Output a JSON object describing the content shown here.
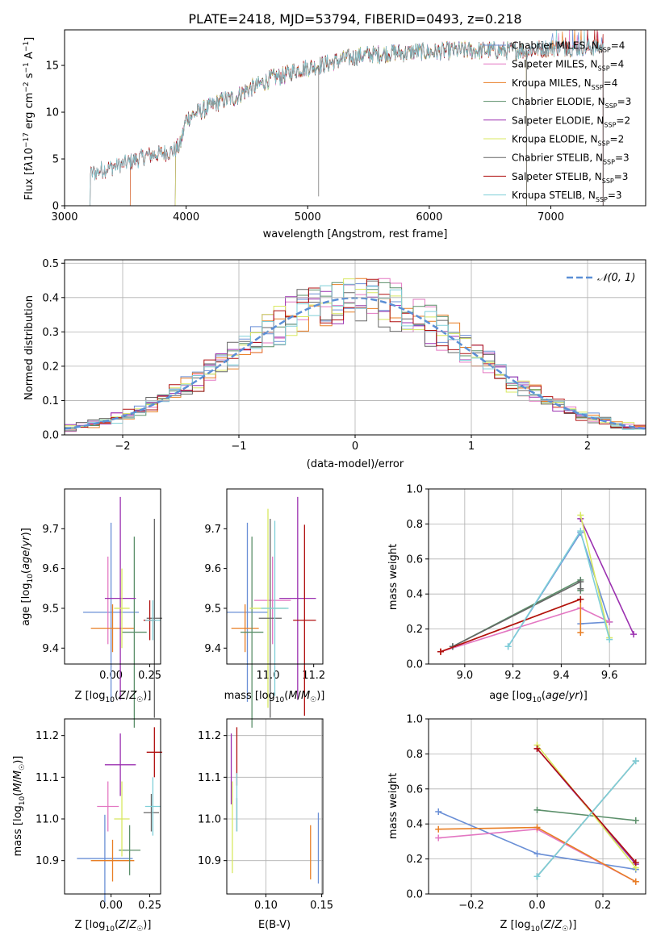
{
  "chart_data": [
    {
      "id": "spectrum",
      "type": "line",
      "title": "PLATE=2418, MJD=53794, FIBERID=0493, z=0.218",
      "xlabel": "wavelength [Angstrom, rest frame]",
      "ylabel": "Flux [f_λ 10^-17 erg cm^-2 s^-1 A^-1]",
      "xlim": [
        3000,
        7780
      ],
      "ylim": [
        0,
        18.8
      ],
      "xticks": [
        3000,
        4000,
        5000,
        6000,
        7000
      ],
      "yticks": [
        0,
        5,
        10,
        15
      ],
      "grid": false,
      "legend_position": "right",
      "spectrum_shape": {
        "x": [
          3210,
          3300,
          3400,
          3500,
          3600,
          3700,
          3800,
          3900,
          3950,
          4000,
          4100,
          4200,
          4300,
          4400,
          4500,
          4600,
          4700,
          4800,
          4900,
          5000,
          5100,
          5200,
          5300,
          5400,
          5500,
          5600,
          5700,
          5800,
          5900,
          6000,
          6200,
          6400,
          6600,
          6800,
          7000,
          7200,
          7400
        ],
        "y": [
          3.4,
          3.8,
          4.2,
          4.5,
          5.0,
          5.4,
          5.6,
          5.9,
          6.4,
          9.3,
          10.0,
          10.6,
          11.3,
          11.5,
          12.4,
          12.9,
          13.6,
          13.9,
          14.5,
          14.8,
          15.0,
          15.3,
          15.7,
          15.9,
          16.2,
          16.2,
          16.4,
          16.3,
          16.5,
          16.4,
          16.6,
          16.6,
          16.6,
          16.6,
          16.9,
          16.9,
          16.9
        ]
      },
      "series": [
        {
          "name": "Chabrier MILES, N_SSP=4",
          "color": "#6a8fd6",
          "start": 3540,
          "end": 7430
        },
        {
          "name": "Salpeter MILES, N_SSP=4",
          "color": "#e377c2",
          "start": 3540,
          "end": 7430
        },
        {
          "name": "Kroupa MILES, N_SSP=4",
          "color": "#e87e24",
          "start": 3540,
          "end": 7430
        },
        {
          "name": "Chabrier ELODIE, N_SSP=3",
          "color": "#5b8f6a",
          "start": 3910,
          "end": 6800
        },
        {
          "name": "Salpeter ELODIE, N_SSP=2",
          "color": "#9b30b0",
          "start": 3910,
          "end": 6800
        },
        {
          "name": "Kroupa ELODIE, N_SSP=2",
          "color": "#d8e860",
          "start": 3910,
          "end": 6800
        },
        {
          "name": "Chabrier STELIB, N_SSP=3",
          "color": "#666666",
          "start": 3210,
          "end": 7430
        },
        {
          "name": "Salpeter STELIB, N_SSP=3",
          "color": "#b01010",
          "start": 3210,
          "end": 7430
        },
        {
          "name": "Kroupa STELIB, N_SSP=3",
          "color": "#7fcfd8",
          "start": 3210,
          "end": 7430
        }
      ]
    },
    {
      "id": "residuals",
      "type": "line",
      "xlabel": "(data-model)/error",
      "ylabel": "Normed distribution",
      "xlim": [
        -2.5,
        2.5
      ],
      "ylim": [
        0,
        0.51
      ],
      "xticks": [
        -2,
        -1,
        0,
        1,
        2
      ],
      "yticks": [
        0.0,
        0.1,
        0.2,
        0.3,
        0.4,
        0.5
      ],
      "grid": true,
      "legend_position": "top-right",
      "normal_label": "𝒩(0, 1)",
      "normal_color": "#5b8fd6",
      "bin_width": 0.1,
      "series_colors": [
        "#6a8fd6",
        "#e377c2",
        "#e87e24",
        "#5b8f6a",
        "#9b30b0",
        "#d8e860",
        "#666666",
        "#b01010",
        "#7fcfd8"
      ]
    },
    {
      "id": "age-vs-z",
      "type": "scatter",
      "xlabel": "Z [log10(Z/Z☉)]",
      "ylabel": "age [log10(age/yr)]",
      "xlim": [
        -0.3,
        0.32
      ],
      "ylim": [
        9.36,
        9.8
      ],
      "xticks": [
        0.0,
        0.25
      ],
      "yticks": [
        9.4,
        9.5,
        9.6,
        9.7
      ],
      "grid": false,
      "points": [
        {
          "color": "#6a8fd6",
          "x": 0.0,
          "xerr": 0.18,
          "y": 9.49,
          "yerr": 0.225
        },
        {
          "color": "#e377c2",
          "x": -0.02,
          "xerr": 0.0,
          "y": 9.52,
          "yerr": 0.11
        },
        {
          "color": "#e87e24",
          "x": 0.01,
          "xerr": 0.14,
          "y": 9.45,
          "yerr": 0.06
        },
        {
          "color": "#5b8f6a",
          "x": 0.15,
          "xerr": 0.08,
          "y": 9.44,
          "yerr": 0.24
        },
        {
          "color": "#9b30b0",
          "x": 0.06,
          "xerr": 0.1,
          "y": 9.525,
          "yerr": 0.255
        },
        {
          "color": "#d8e860",
          "x": 0.07,
          "xerr": 0.05,
          "y": 9.5,
          "yerr": 0.1
        },
        {
          "color": "#666666",
          "x": 0.28,
          "xerr": 0.05,
          "y": 9.475,
          "yerr": 0.25
        },
        {
          "color": "#b01010",
          "x": 0.25,
          "xerr": 0.04,
          "y": 9.47,
          "yerr": 0.05
        },
        {
          "color": "#7fcfd8",
          "x": 0.27,
          "xerr": 0.05,
          "y": 9.47,
          "yerr": 0.05
        }
      ]
    },
    {
      "id": "age-vs-mass",
      "type": "scatter",
      "xlabel": "mass [log10(M/M☉)]",
      "ylabel": "",
      "xlim": [
        10.82,
        11.24
      ],
      "ylim": [
        9.36,
        9.8
      ],
      "xticks": [
        11.0,
        11.2
      ],
      "yticks": [
        9.4,
        9.5,
        9.6,
        9.7
      ],
      "grid": false,
      "points": [
        {
          "color": "#6a8fd6",
          "x": 10.91,
          "xerr": 0.09,
          "y": 9.49,
          "yerr": 0.225
        },
        {
          "color": "#e377c2",
          "x": 11.02,
          "xerr": 0.08,
          "y": 9.52,
          "yerr": 0.11
        },
        {
          "color": "#e87e24",
          "x": 10.9,
          "xerr": 0.06,
          "y": 9.45,
          "yerr": 0.06
        },
        {
          "color": "#5b8f6a",
          "x": 10.93,
          "xerr": 0.05,
          "y": 9.44,
          "yerr": 0.24
        },
        {
          "color": "#9b30b0",
          "x": 11.13,
          "xerr": 0.08,
          "y": 9.525,
          "yerr": 0.255
        },
        {
          "color": "#d8e860",
          "x": 11.0,
          "xerr": 0.08,
          "y": 9.5,
          "yerr": 0.25
        },
        {
          "color": "#666666",
          "x": 11.01,
          "xerr": 0.05,
          "y": 9.475,
          "yerr": 0.25
        },
        {
          "color": "#b01010",
          "x": 11.16,
          "xerr": 0.05,
          "y": 9.47,
          "yerr": 0.24
        },
        {
          "color": "#7fcfd8",
          "x": 11.03,
          "xerr": 0.06,
          "y": 9.5,
          "yerr": 0.22
        }
      ]
    },
    {
      "id": "weight-vs-age",
      "type": "line",
      "xlabel": "age [log10(age/yr)]",
      "ylabel": "mass weight",
      "xlim": [
        8.85,
        9.75
      ],
      "ylim": [
        0,
        1.0
      ],
      "xticks": [
        9.0,
        9.2,
        9.4,
        9.6
      ],
      "yticks": [
        0.0,
        0.2,
        0.4,
        0.6,
        0.8,
        1.0
      ],
      "grid": true,
      "series": [
        {
          "color": "#6a8fd6",
          "x": [
            9.18,
            9.48,
            9.6,
            9.48,
            9.6
          ],
          "y": [
            0.1,
            0.75,
            0.24,
            0.23,
            0.24
          ]
        },
        {
          "color": "#e377c2",
          "x": [
            8.9,
            9.48,
            9.6
          ],
          "y": [
            0.07,
            0.32,
            0.24
          ]
        },
        {
          "color": "#e87e24",
          "x": [
            8.9,
            9.48,
            9.48
          ],
          "y": [
            0.07,
            0.37,
            0.18
          ]
        },
        {
          "color": "#5b8f6a",
          "x": [
            8.95,
            9.48,
            9.48
          ],
          "y": [
            0.1,
            0.48,
            0.42
          ]
        },
        {
          "color": "#9b30b0",
          "x": [
            9.48,
            9.7
          ],
          "y": [
            0.83,
            0.17
          ]
        },
        {
          "color": "#d8e860",
          "x": [
            9.48,
            9.6
          ],
          "y": [
            0.85,
            0.15
          ]
        },
        {
          "color": "#666666",
          "x": [
            8.95,
            9.48,
            9.48
          ],
          "y": [
            0.1,
            0.47,
            0.43
          ]
        },
        {
          "color": "#b01010",
          "x": [
            8.9,
            9.48
          ],
          "y": [
            0.07,
            0.37
          ]
        },
        {
          "color": "#7fcfd8",
          "x": [
            9.18,
            9.48,
            9.6
          ],
          "y": [
            0.1,
            0.76,
            0.14
          ]
        }
      ]
    },
    {
      "id": "mass-vs-z",
      "type": "scatter",
      "xlabel": "Z [log10(Z/Z☉)]",
      "ylabel": "mass [log10(M/M☉)]",
      "xlim": [
        -0.3,
        0.32
      ],
      "ylim": [
        10.82,
        11.24
      ],
      "xticks": [
        0.0,
        0.25
      ],
      "yticks": [
        10.9,
        11.0,
        11.1,
        11.2
      ],
      "grid": false,
      "points": [
        {
          "color": "#6a8fd6",
          "x": -0.04,
          "xerr": 0.18,
          "y": 10.905,
          "yerr": 0.105
        },
        {
          "color": "#e377c2",
          "x": -0.02,
          "xerr": 0.07,
          "y": 11.03,
          "yerr": 0.06
        },
        {
          "color": "#e87e24",
          "x": 0.01,
          "xerr": 0.14,
          "y": 10.9,
          "yerr": 0.05
        },
        {
          "color": "#5b8f6a",
          "x": 0.12,
          "xerr": 0.07,
          "y": 10.925,
          "yerr": 0.06
        },
        {
          "color": "#9b30b0",
          "x": 0.06,
          "xerr": 0.1,
          "y": 11.13,
          "yerr": 0.075
        },
        {
          "color": "#d8e860",
          "x": 0.07,
          "xerr": 0.05,
          "y": 11.0,
          "yerr": 0.09
        },
        {
          "color": "#666666",
          "x": 0.26,
          "xerr": 0.05,
          "y": 11.015,
          "yerr": 0.045
        },
        {
          "color": "#b01010",
          "x": 0.28,
          "xerr": 0.05,
          "y": 11.16,
          "yerr": 0.06
        },
        {
          "color": "#7fcfd8",
          "x": 0.27,
          "xerr": 0.05,
          "y": 11.03,
          "yerr": 0.07
        }
      ]
    },
    {
      "id": "mass-vs-ebv",
      "type": "scatter",
      "xlabel": "E(B-V)",
      "ylabel": "",
      "xlim": [
        0.065,
        0.151
      ],
      "ylim": [
        10.82,
        11.24
      ],
      "xticks": [
        0.1,
        0.15
      ],
      "yticks": [
        10.9,
        11.0,
        11.1,
        11.2
      ],
      "grid": true,
      "points": [
        {
          "color": "#6a8fd6",
          "x": 0.147,
          "xerr": 0.0,
          "y": 10.93,
          "yerr": 0.085
        },
        {
          "color": "#e87e24",
          "x": 0.14,
          "xerr": 0.0,
          "y": 10.92,
          "yerr": 0.065
        },
        {
          "color": "#9b30b0",
          "x": 0.069,
          "xerr": 0.0,
          "y": 11.12,
          "yerr": 0.085
        },
        {
          "color": "#d8e860",
          "x": 0.07,
          "xerr": 0.0,
          "y": 10.98,
          "yerr": 0.11
        },
        {
          "color": "#666666",
          "x": 0.074,
          "xerr": 0.0,
          "y": 11.01,
          "yerr": 0.04
        },
        {
          "color": "#b01010",
          "x": 0.074,
          "xerr": 0.0,
          "y": 11.15,
          "yerr": 0.07
        },
        {
          "color": "#7fcfd8",
          "x": 0.074,
          "xerr": 0.0,
          "y": 11.04,
          "yerr": 0.07
        }
      ]
    },
    {
      "id": "weight-vs-z",
      "type": "line",
      "xlabel": "Z [log10(Z/Z☉)]",
      "ylabel": "mass weight",
      "xlim": [
        -0.33,
        0.33
      ],
      "ylim": [
        0,
        1.0
      ],
      "xticks": [
        -0.2,
        0.0,
        0.2
      ],
      "yticks": [
        0.0,
        0.2,
        0.4,
        0.6,
        0.8,
        1.0
      ],
      "grid": true,
      "series": [
        {
          "color": "#6a8fd6",
          "x": [
            -0.3,
            0.0,
            0.3
          ],
          "y": [
            0.47,
            0.23,
            0.14
          ]
        },
        {
          "color": "#e377c2",
          "x": [
            -0.3,
            0.0,
            0.3
          ],
          "y": [
            0.32,
            0.37,
            0.07
          ]
        },
        {
          "color": "#e87e24",
          "x": [
            -0.3,
            0.0,
            0.3
          ],
          "y": [
            0.37,
            0.38,
            0.07
          ]
        },
        {
          "color": "#5b8f6a",
          "x": [
            0.0,
            0.3
          ],
          "y": [
            0.48,
            0.42
          ]
        },
        {
          "color": "#9b30b0",
          "x": [
            0.0,
            0.3
          ],
          "y": [
            0.83,
            0.17
          ]
        },
        {
          "color": "#d8e860",
          "x": [
            0.0,
            0.3
          ],
          "y": [
            0.85,
            0.15
          ]
        },
        {
          "color": "#666666",
          "x": [
            0.0,
            0.3
          ],
          "y": [
            0.1,
            0.76
          ]
        },
        {
          "color": "#b01010",
          "x": [
            0.0,
            0.3
          ],
          "y": [
            0.83,
            0.18
          ]
        },
        {
          "color": "#7fcfd8",
          "x": [
            0.0,
            0.3
          ],
          "y": [
            0.1,
            0.76
          ]
        }
      ]
    }
  ]
}
